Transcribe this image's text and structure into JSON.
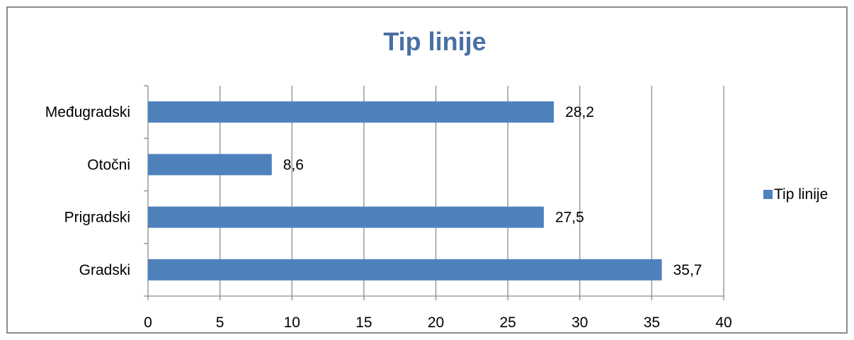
{
  "chart_data": {
    "type": "bar",
    "orientation": "horizontal",
    "title": "Tip linije",
    "categories": [
      "Gradski",
      "Prigradski",
      "Otočni",
      "Međugradski"
    ],
    "series": [
      {
        "name": "Tip linije",
        "values": [
          35.7,
          27.5,
          8.6,
          28.2
        ],
        "labels": [
          "35,7",
          "27,5",
          "8,6",
          "28,2"
        ]
      }
    ],
    "xlim": [
      0,
      40
    ],
    "xticks": [
      0,
      5,
      10,
      15,
      20,
      25,
      30,
      35,
      40
    ],
    "grid": "vertical",
    "legend": "right",
    "colors": {
      "bar": "#4f81bd",
      "title": "#4a6fa5",
      "grid": "#8c8c8c",
      "frame": "#8c8c8c"
    }
  }
}
